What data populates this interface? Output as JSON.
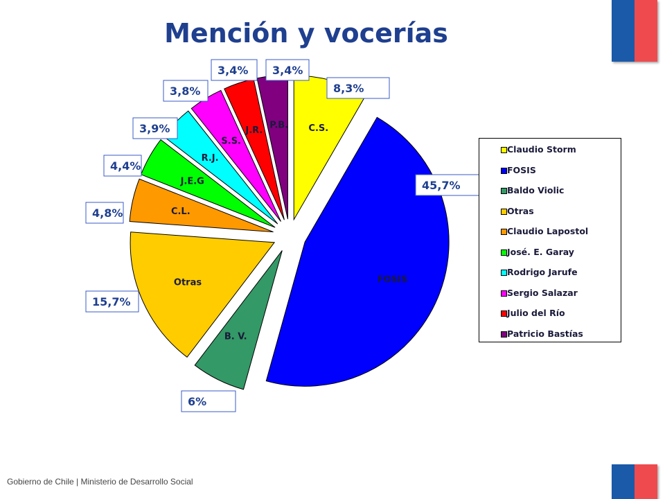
{
  "title": "Mención y vocerías",
  "footer": "Gobierno de Chile | Ministerio de Desarrollo Social",
  "chart_data": {
    "type": "pie",
    "title": "Mención y vocerías",
    "slices": [
      {
        "label": "C.S.",
        "legend": "Claudio Storm",
        "value": 8.3,
        "pct": "8,3%",
        "color": "#ffff00"
      },
      {
        "label": "FOSIS",
        "legend": "FOSIS",
        "value": 45.7,
        "pct": "45,7%",
        "color": "#0000ff"
      },
      {
        "label": "B. V.",
        "legend": "Baldo Violic",
        "value": 6,
        "pct": "6%",
        "color": "#339966"
      },
      {
        "label": "Otras",
        "legend": "Otras",
        "value": 15.7,
        "pct": "15,7%",
        "color": "#ffcc00"
      },
      {
        "label": "C.L.",
        "legend": "Claudio Lapostol",
        "value": 4.8,
        "pct": "4,8%",
        "color": "#ff9900"
      },
      {
        "label": "J.E.G",
        "legend": "José. E. Garay",
        "value": 4.4,
        "pct": "4,4%",
        "color": "#00ff00"
      },
      {
        "label": "R.J.",
        "legend": "Rodrigo Jarufe",
        "value": 3.9,
        "pct": "3,9%",
        "color": "#00ffff"
      },
      {
        "label": "S.S.",
        "legend": "Sergio Salazar",
        "value": 3.8,
        "pct": "3,8%",
        "color": "#ff00ff"
      },
      {
        "label": "J.R.",
        "legend": "Julio del Río",
        "value": 3.4,
        "pct": "3,4%",
        "color": "#ff0000"
      },
      {
        "label": "P.B.",
        "legend": "Patricio Bastías",
        "value": 3.4,
        "pct": "3,4%",
        "color": "#800080"
      }
    ],
    "legend_position": "right"
  }
}
